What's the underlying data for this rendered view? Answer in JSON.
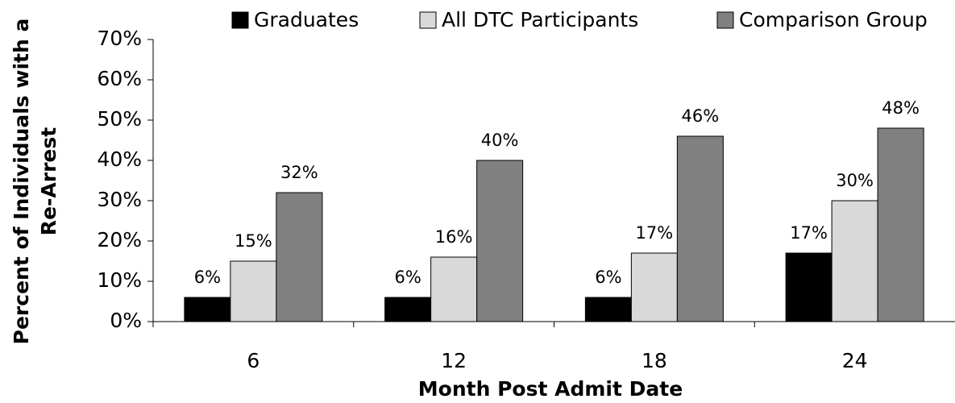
{
  "chart_data": {
    "type": "bar",
    "x_label": "Month Post Admit Date",
    "y_label": [
      "Percent of Individuals with a",
      "Re-Arrest"
    ],
    "categories": [
      "6",
      "12",
      "18",
      "24"
    ],
    "series": [
      {
        "name": "Graduates",
        "color": "#000000",
        "values": [
          6,
          6,
          6,
          17
        ],
        "value_labels": [
          "6%",
          "6%",
          "6%",
          "17%"
        ]
      },
      {
        "name": "All DTC Participants",
        "color": "#d9d9d9",
        "values": [
          15,
          16,
          17,
          30
        ],
        "value_labels": [
          "15%",
          "16%",
          "17%",
          "30%"
        ]
      },
      {
        "name": "Comparison Group",
        "color": "#808080",
        "values": [
          32,
          40,
          46,
          48
        ],
        "value_labels": [
          "32%",
          "40%",
          "46%",
          "48%"
        ]
      }
    ],
    "ylim": [
      0,
      70
    ],
    "yticks": [
      {
        "value": 0,
        "label": "0%"
      },
      {
        "value": 10,
        "label": "10%"
      },
      {
        "value": 20,
        "label": "20%"
      },
      {
        "value": 30,
        "label": "30%"
      },
      {
        "value": 40,
        "label": "40%"
      },
      {
        "value": 50,
        "label": "50%"
      },
      {
        "value": 60,
        "label": "60%"
      },
      {
        "value": 70,
        "label": "70%"
      }
    ],
    "legend": "top"
  }
}
